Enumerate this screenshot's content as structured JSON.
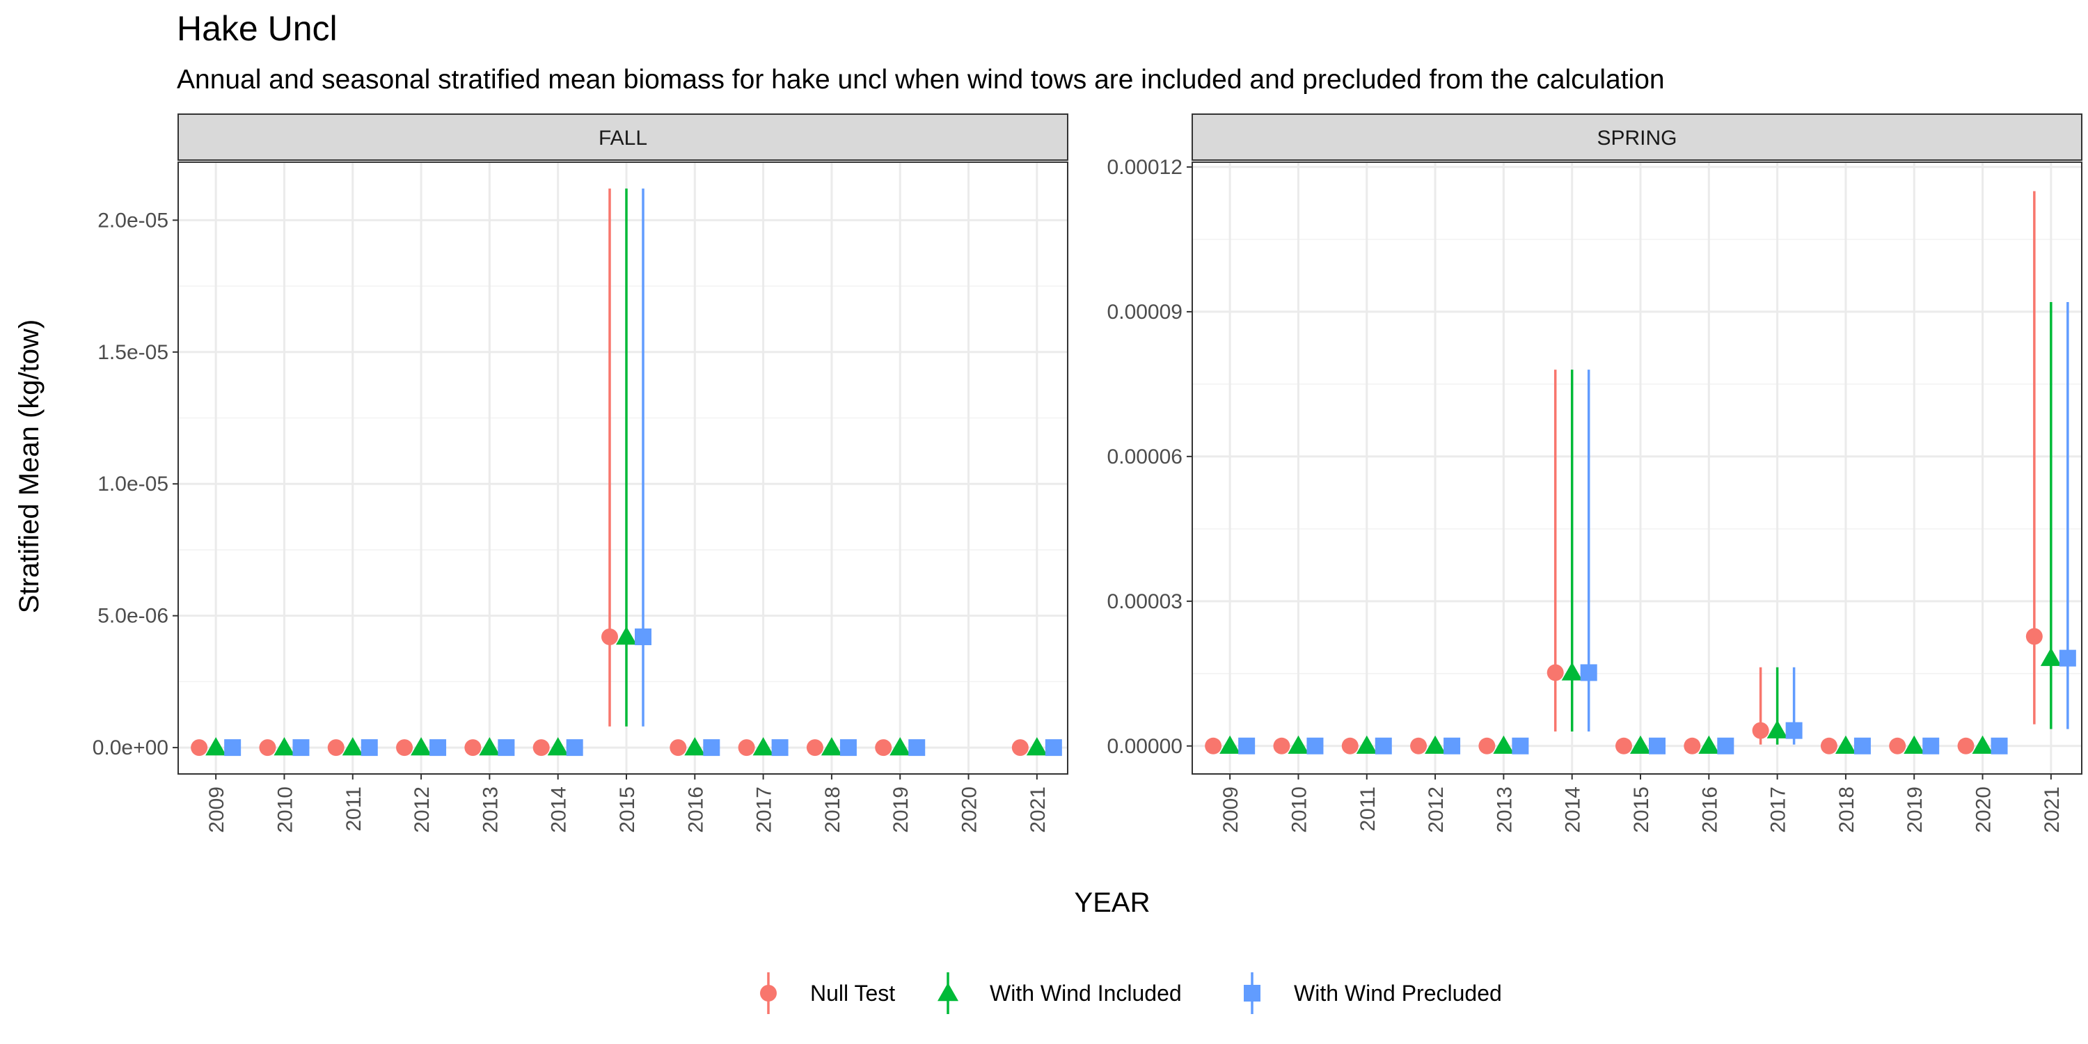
{
  "chart_data": {
    "type": "scatter",
    "title": "Hake Uncl",
    "subtitle": "Annual and seasonal stratified mean biomass for hake uncl when wind tows are included and precluded from the calculation",
    "xlabel": "YEAR",
    "ylabel": "Stratified Mean (kg/tow)",
    "legend": {
      "placement": "bottom",
      "entries": [
        "Null Test",
        "With Wind Included",
        "With Wind Precluded"
      ]
    },
    "grid": true,
    "colors": {
      "Null Test": "#F8766D",
      "With Wind Included": "#00BA38",
      "With Wind Precluded": "#619CFF"
    },
    "shapes": {
      "Null Test": "circle",
      "With Wind Included": "triangle",
      "With Wind Precluded": "square"
    },
    "categories": [
      "2009",
      "2010",
      "2011",
      "2012",
      "2013",
      "2014",
      "2015",
      "2016",
      "2017",
      "2018",
      "2019",
      "2020",
      "2021"
    ],
    "panels": [
      {
        "name": "FALL",
        "ylim": [
          -1e-06,
          2.22e-05
        ],
        "yticks": [
          0,
          5e-06,
          1e-05,
          1.5e-05,
          2e-05
        ],
        "yticklabels": [
          "0.0e+00",
          "5.0e-06",
          "1.0e-05",
          "1.5e-05",
          "2.0e-05"
        ],
        "series": [
          {
            "name": "Null Test",
            "values": [
              0,
              0,
              0,
              0,
              0,
              0,
              4.2e-06,
              0,
              0,
              0,
              0,
              null,
              0
            ],
            "lower": [
              0,
              0,
              0,
              0,
              0,
              0,
              8e-07,
              0,
              0,
              0,
              0,
              null,
              0
            ],
            "upper": [
              0,
              0,
              0,
              0,
              0,
              0,
              2.12e-05,
              0,
              0,
              0,
              0,
              null,
              0
            ]
          },
          {
            "name": "With Wind Included",
            "values": [
              0,
              0,
              0,
              0,
              0,
              0,
              4.2e-06,
              0,
              0,
              0,
              0,
              null,
              0
            ],
            "lower": [
              0,
              0,
              0,
              0,
              0,
              0,
              8e-07,
              0,
              0,
              0,
              0,
              null,
              0
            ],
            "upper": [
              0,
              0,
              0,
              0,
              0,
              0,
              2.12e-05,
              0,
              0,
              0,
              0,
              null,
              0
            ]
          },
          {
            "name": "With Wind Precluded",
            "values": [
              0,
              0,
              0,
              0,
              0,
              0,
              4.2e-06,
              0,
              0,
              0,
              0,
              null,
              0
            ],
            "lower": [
              0,
              0,
              0,
              0,
              0,
              0,
              8e-07,
              0,
              0,
              0,
              0,
              null,
              0
            ],
            "upper": [
              0,
              0,
              0,
              0,
              0,
              0,
              2.12e-05,
              0,
              0,
              0,
              0,
              null,
              0
            ]
          }
        ]
      },
      {
        "name": "SPRING",
        "ylim": [
          -5.8e-06,
          0.000121
        ],
        "yticks": [
          0,
          3e-05,
          6e-05,
          9e-05,
          0.00012
        ],
        "yticklabels": [
          "0.00000",
          "0.00003",
          "0.00006",
          "0.00009",
          "0.00012"
        ],
        "series": [
          {
            "name": "Null Test",
            "values": [
              0,
              0,
              0,
              0,
              0,
              1.52e-05,
              0,
              0,
              3.2e-06,
              0,
              0,
              0,
              2.27e-05
            ],
            "lower": [
              0,
              0,
              0,
              0,
              0,
              3e-06,
              0,
              0,
              3e-07,
              0,
              0,
              0,
              4.5e-06
            ],
            "upper": [
              0,
              0,
              0,
              0,
              0,
              7.8e-05,
              0,
              0,
              1.63e-05,
              0,
              0,
              0,
              0.000115
            ]
          },
          {
            "name": "With Wind Included",
            "values": [
              0,
              0,
              0,
              0,
              0,
              1.52e-05,
              0,
              0,
              3.2e-06,
              0,
              0,
              0,
              1.82e-05
            ],
            "lower": [
              0,
              0,
              0,
              0,
              0,
              3e-06,
              0,
              0,
              3e-07,
              0,
              0,
              0,
              3.5e-06
            ],
            "upper": [
              0,
              0,
              0,
              0,
              0,
              7.8e-05,
              0,
              0,
              1.63e-05,
              0,
              0,
              0,
              9.2e-05
            ]
          },
          {
            "name": "With Wind Precluded",
            "values": [
              0,
              0,
              0,
              0,
              0,
              1.52e-05,
              0,
              0,
              3.2e-06,
              0,
              0,
              0,
              1.82e-05
            ],
            "lower": [
              0,
              0,
              0,
              0,
              0,
              3e-06,
              0,
              0,
              3e-07,
              0,
              0,
              0,
              3.5e-06
            ],
            "upper": [
              0,
              0,
              0,
              0,
              0,
              7.8e-05,
              0,
              0,
              1.63e-05,
              0,
              0,
              0,
              9.2e-05
            ]
          }
        ]
      }
    ]
  }
}
